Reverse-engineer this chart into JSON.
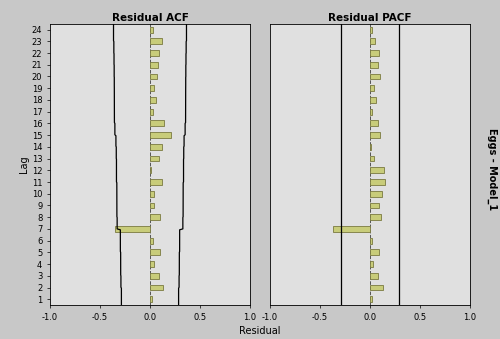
{
  "acf_values": [
    0.02,
    0.13,
    0.09,
    0.04,
    0.1,
    0.03,
    -0.35,
    0.1,
    0.04,
    0.04,
    0.12,
    0.01,
    0.09,
    0.12,
    0.21,
    0.14,
    0.03,
    0.06,
    0.04,
    0.07,
    0.08,
    0.09,
    0.12,
    0.03
  ],
  "pacf_values": [
    0.02,
    0.13,
    0.08,
    0.03,
    0.09,
    0.02,
    -0.37,
    0.11,
    0.09,
    0.12,
    0.15,
    0.14,
    0.04,
    0.01,
    0.1,
    0.08,
    0.02,
    0.06,
    0.04,
    0.1,
    0.08,
    0.09,
    0.05,
    0.02
  ],
  "lags": [
    1,
    2,
    3,
    4,
    5,
    6,
    7,
    8,
    9,
    10,
    11,
    12,
    13,
    14,
    15,
    16,
    17,
    18,
    19,
    20,
    21,
    22,
    23,
    24
  ],
  "bar_color": "#c8cc7a",
  "bar_edge_color": "#7a7a40",
  "xlim": [
    -1.0,
    1.0
  ],
  "ylim": [
    0.5,
    24.5
  ],
  "xlabel": "Residual",
  "ylabel_left": "Lag",
  "ylabel_right": "Eggs - Model_1",
  "title_acf": "Residual ACF",
  "title_pacf": "Residual PACF",
  "plot_bg": "#e0e0e0",
  "fig_bg": "#c8c8c8",
  "n_obs": 47,
  "ci_straight": 0.286
}
